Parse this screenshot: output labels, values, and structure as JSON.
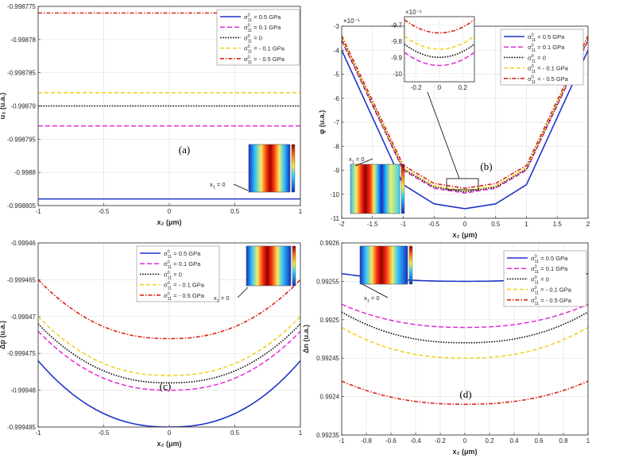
{
  "figure": {
    "sigma_legend": [
      "= 0.5 GPa",
      "= 0.1 GPa",
      "= 0",
      "= - 0.1 GPa",
      "= - 0.5 GPa"
    ],
    "series_colors": [
      "#1f34c8",
      "#e22ad4",
      "#111111",
      "#f0cf18",
      "#d8261c"
    ],
    "sigma_symbol": "σ",
    "sigma_sup": "0",
    "sigma_sub": "11",
    "x1_label": "x",
    "x1_sub": "1",
    "x1_value": "= 0"
  },
  "chart_data": [
    {
      "panel_label": "(a)",
      "type": "line",
      "ylabel": "u₃ (u.a.)",
      "xlabel": "x₂ (μm)",
      "xlim": [
        -1,
        1
      ],
      "ylim": [
        -0.998805,
        -0.998775
      ],
      "xticks": [
        "-1",
        "-0.5",
        "0",
        "0.5",
        "1"
      ],
      "yticks": [
        "-0.998805",
        "-0.9988",
        "-0.998795",
        "-0.99879",
        "-0.998785",
        "-0.99878",
        "-0.998775"
      ],
      "legend_placement": "top-right",
      "grid": true,
      "series": [
        {
          "name": "σ⁰₁₁ = 0.5 GPa",
          "x": [
            -1,
            1
          ],
          "values": [
            -0.998804,
            -0.998804
          ]
        },
        {
          "name": "σ⁰₁₁ = 0.1 GPa",
          "x": [
            -1,
            1
          ],
          "values": [
            -0.998793,
            -0.998793
          ]
        },
        {
          "name": "σ⁰₁₁ = 0",
          "x": [
            -1,
            1
          ],
          "values": [
            -0.99879,
            -0.99879
          ]
        },
        {
          "name": "σ⁰₁₁ = - 0.1 GPa",
          "x": [
            -1,
            1
          ],
          "values": [
            -0.998788,
            -0.998788
          ]
        },
        {
          "name": "σ⁰₁₁ = - 0.5 GPa",
          "x": [
            -1,
            1
          ],
          "values": [
            -0.998776,
            -0.998776
          ]
        }
      ]
    },
    {
      "panel_label": "(b)",
      "type": "line",
      "ylabel": "φ (u.a.)",
      "xlabel": "x₂ (μm)",
      "exponent": "×10⁻⁵",
      "xlim": [
        -2,
        2
      ],
      "ylim": [
        -11,
        -3
      ],
      "xticks": [
        "-2",
        "-1.5",
        "-1",
        "-0.5",
        "0",
        "0.5",
        "1",
        "1.5",
        "2"
      ],
      "yticks": [
        "-11",
        "-10",
        "-9",
        "-8",
        "-7",
        "-6",
        "-5",
        "-4",
        "-3"
      ],
      "legend_placement": "top-right",
      "grid": true,
      "series": [
        {
          "name": "σ⁰₁₁ = 0.5 GPa",
          "x": [
            -2,
            -1,
            -0.5,
            0,
            0.5,
            1,
            2
          ],
          "values": [
            -4.0,
            -9.6,
            -10.4,
            -10.6,
            -10.4,
            -9.6,
            -4.0
          ]
        },
        {
          "name": "σ⁰₁₁ = 0.1 GPa",
          "x": [
            -2,
            -1,
            -0.5,
            0,
            0.5,
            1,
            2
          ],
          "values": [
            -3.6,
            -9.0,
            -9.75,
            -9.95,
            -9.75,
            -9.0,
            -3.6
          ]
        },
        {
          "name": "σ⁰₁₁ = 0",
          "x": [
            -2,
            -1,
            -0.5,
            0,
            0.5,
            1,
            2
          ],
          "values": [
            -3.55,
            -8.95,
            -9.7,
            -9.9,
            -9.7,
            -8.95,
            -3.55
          ]
        },
        {
          "name": "σ⁰₁₁ = - 0.1 GPa",
          "x": [
            -2,
            -1,
            -0.5,
            0,
            0.5,
            1,
            2
          ],
          "values": [
            -3.5,
            -8.9,
            -9.65,
            -9.85,
            -9.65,
            -8.9,
            -3.5
          ]
        },
        {
          "name": "σ⁰₁₁ = - 0.5 GPa",
          "x": [
            -2,
            -1,
            -0.5,
            0,
            0.5,
            1,
            2
          ],
          "values": [
            -3.4,
            -8.8,
            -9.55,
            -9.75,
            -9.55,
            -8.8,
            -3.4
          ]
        }
      ],
      "inset": {
        "exponent": "×10⁻⁵",
        "xlim": [
          -0.3,
          0.3
        ],
        "ylim": [
          -10.05,
          -9.65
        ],
        "xticks": [
          "-0.2",
          "0",
          "0.2"
        ],
        "yticks": [
          "-9.7",
          "-9.8",
          "-9.9",
          "-10"
        ]
      }
    },
    {
      "panel_label": "(c)",
      "type": "line",
      "ylabel": "Δp (u.a.)",
      "xlabel": "x₂ (μm)",
      "xlim": [
        -1,
        1
      ],
      "ylim": [
        -0.999485,
        -0.99946
      ],
      "xticks": [
        "-1",
        "-0.5",
        "0",
        "0.5",
        "1"
      ],
      "yticks": [
        "-0.999485",
        "-0.99948",
        "-0.999475",
        "-0.99947",
        "-0.999465",
        "-0.99946"
      ],
      "legend_placement": "top-left",
      "grid": true,
      "series": [
        {
          "name": "σ⁰₁₁ = 0.5 GPa",
          "x": [
            -1,
            -0.5,
            0,
            0.5,
            1
          ],
          "values": [
            -0.999476,
            -0.999483,
            -0.999485,
            -0.999483,
            -0.999476
          ]
        },
        {
          "name": "σ⁰₁₁ = 0.1 GPa",
          "x": [
            -1,
            -0.5,
            0,
            0.5,
            1
          ],
          "values": [
            -0.999472,
            -0.999479,
            -0.99948,
            -0.999479,
            -0.999472
          ]
        },
        {
          "name": "σ⁰₁₁ = 0",
          "x": [
            -1,
            -0.5,
            0,
            0.5,
            1
          ],
          "values": [
            -0.999471,
            -0.999478,
            -0.999479,
            -0.999478,
            -0.999471
          ]
        },
        {
          "name": "σ⁰₁₁ = - 0.1 GPa",
          "x": [
            -1,
            -0.5,
            0,
            0.5,
            1
          ],
          "values": [
            -0.99947,
            -0.999477,
            -0.999478,
            -0.999477,
            -0.99947
          ]
        },
        {
          "name": "σ⁰₁₁ = - 0.5 GPa",
          "x": [
            -1,
            -0.5,
            0,
            0.5,
            1
          ],
          "values": [
            -0.999465,
            -0.999472,
            -0.999473,
            -0.999472,
            -0.999465
          ]
        }
      ]
    },
    {
      "panel_label": "(d)",
      "type": "line",
      "ylabel": "Δn (u.a.)",
      "xlabel": "x₂ (μm)",
      "xlim": [
        -1,
        1
      ],
      "ylim": [
        0.99235,
        0.9926
      ],
      "xticks": [
        "-1",
        "-0.8",
        "-0.6",
        "-0.4",
        "-0.2",
        "0",
        "0.2",
        "0.4",
        "0.6",
        "0.8",
        "1"
      ],
      "yticks": [
        "0.99235",
        "0.9924",
        "0.99245",
        "0.9925",
        "0.99255",
        "0.9926"
      ],
      "legend_placement": "top-right",
      "grid": true,
      "series": [
        {
          "name": "σ⁰₁₁ = 0.5 GPa",
          "x": [
            -1,
            -0.5,
            0,
            0.5,
            1
          ],
          "values": [
            0.99256,
            0.99255,
            0.99255,
            0.99255,
            0.99256
          ]
        },
        {
          "name": "σ⁰₁₁ = 0.1 GPa",
          "x": [
            -1,
            -0.5,
            0,
            0.5,
            1
          ],
          "values": [
            0.99252,
            0.99249,
            0.99249,
            0.99249,
            0.99252
          ]
        },
        {
          "name": "σ⁰₁₁ = 0",
          "x": [
            -1,
            -0.5,
            0,
            0.5,
            1
          ],
          "values": [
            0.99251,
            0.99248,
            0.99247,
            0.99248,
            0.99251
          ]
        },
        {
          "name": "σ⁰₁₁ = - 0.1 GPa",
          "x": [
            -1,
            -0.5,
            0,
            0.5,
            1
          ],
          "values": [
            0.99249,
            0.99246,
            0.99245,
            0.99246,
            0.99249
          ]
        },
        {
          "name": "σ⁰₁₁ = - 0.5 GPa",
          "x": [
            -1,
            -0.5,
            0,
            0.5,
            1
          ],
          "values": [
            0.99242,
            0.99239,
            0.99239,
            0.99239,
            0.99242
          ]
        }
      ]
    }
  ]
}
